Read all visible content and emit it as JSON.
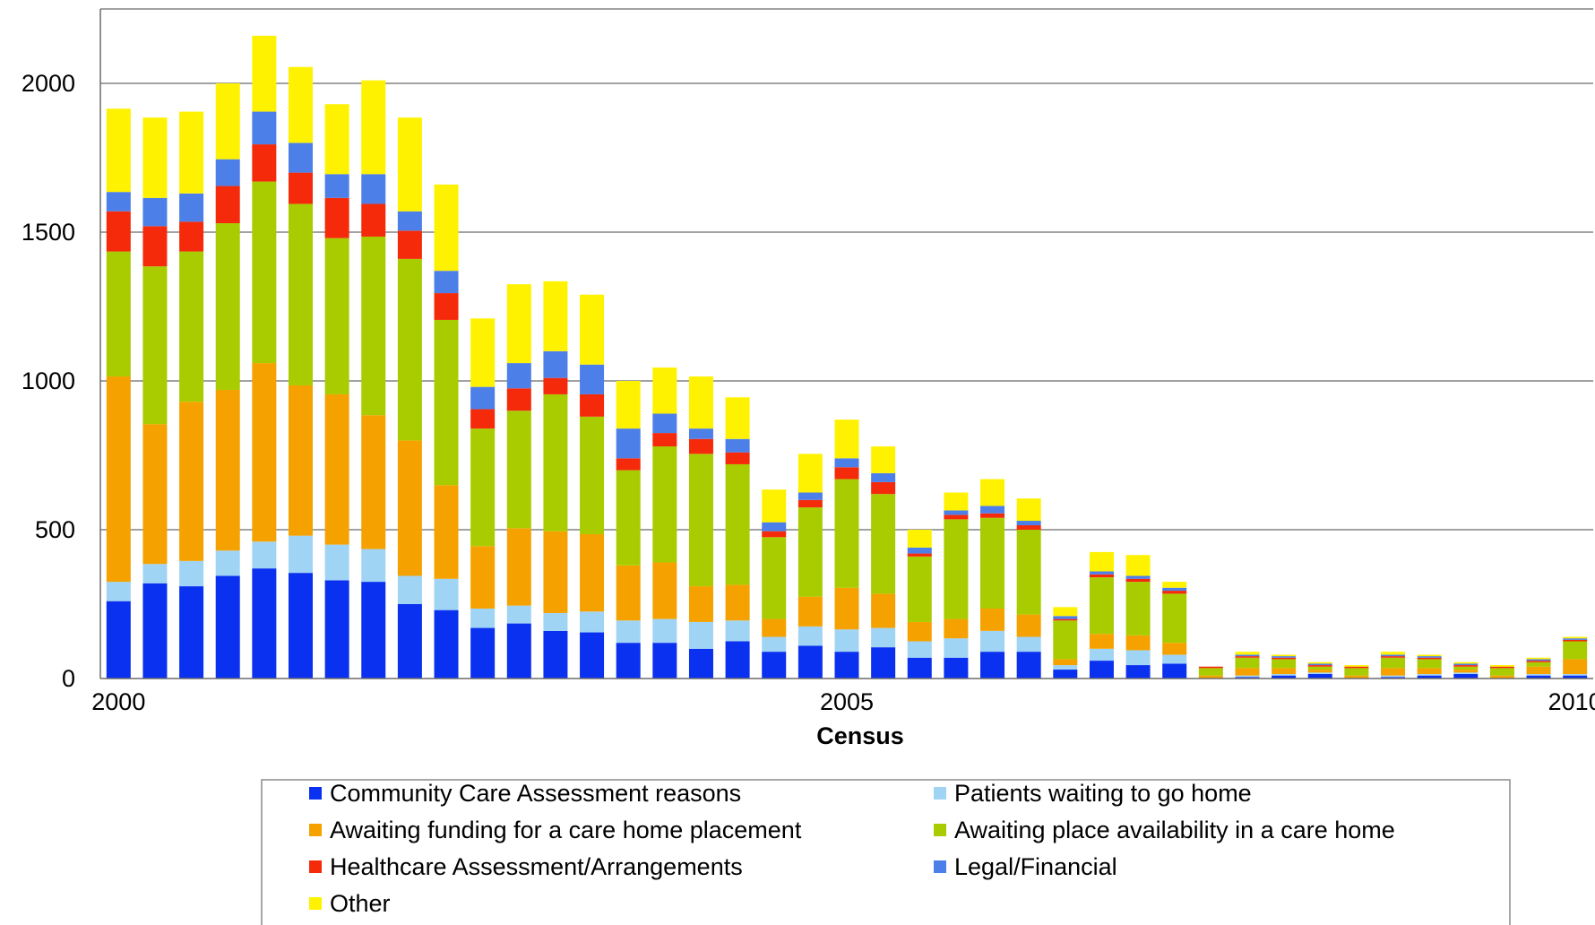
{
  "chart_data": {
    "type": "bar",
    "stacked": true,
    "title": "",
    "xlabel": "Census",
    "ylabel": "",
    "ylim": [
      0,
      2250
    ],
    "yticks": [
      0,
      500,
      1000,
      1500,
      2000
    ],
    "xticks": [
      {
        "label": "2000",
        "at": 0
      },
      {
        "label": "2005",
        "at": 20
      },
      {
        "label": "2010",
        "at": 40
      }
    ],
    "grid": true,
    "legend_position": "bottom",
    "categories": [
      "c0",
      "c1",
      "c2",
      "c3",
      "c4",
      "c5",
      "c6",
      "c7",
      "c8",
      "c9",
      "c10",
      "c11",
      "c12",
      "c13",
      "c14",
      "c15",
      "c16",
      "c17",
      "c18",
      "c19",
      "c20",
      "c21",
      "c22",
      "c23",
      "c24",
      "c25",
      "c26",
      "c27",
      "c28",
      "c29",
      "c30",
      "c31",
      "c32",
      "c33",
      "c34",
      "c35",
      "c36",
      "c37",
      "c38",
      "c39",
      "c40"
    ],
    "series": [
      {
        "name": "Community Care Assessment reasons",
        "color": "#0a30f0",
        "values": [
          260,
          320,
          310,
          345,
          370,
          355,
          330,
          325,
          250,
          230,
          170,
          185,
          160,
          155,
          120,
          120,
          100,
          125,
          90,
          110,
          90,
          105,
          70,
          70,
          90,
          90,
          30,
          60,
          45,
          50,
          0,
          5,
          10,
          15,
          0,
          5,
          10,
          15,
          0,
          10,
          10
        ]
      },
      {
        "name": "Patients waiting to go home",
        "color": "#a0d4f5",
        "values": [
          65,
          65,
          85,
          85,
          90,
          125,
          120,
          110,
          95,
          105,
          65,
          60,
          60,
          70,
          75,
          80,
          90,
          70,
          50,
          65,
          75,
          65,
          55,
          65,
          70,
          50,
          15,
          40,
          50,
          30,
          0,
          5,
          5,
          5,
          0,
          5,
          5,
          5,
          0,
          5,
          5
        ]
      },
      {
        "name": "Awaiting funding for a care home placement",
        "color": "#f5a200",
        "values": [
          690,
          470,
          535,
          540,
          600,
          505,
          505,
          450,
          455,
          315,
          210,
          260,
          275,
          260,
          185,
          190,
          120,
          120,
          60,
          100,
          140,
          115,
          65,
          65,
          75,
          75,
          20,
          50,
          50,
          40,
          10,
          25,
          20,
          10,
          10,
          25,
          20,
          10,
          10,
          25,
          50
        ]
      },
      {
        "name": "Awaiting place availability in a care home",
        "color": "#a8cc00",
        "values": [
          420,
          530,
          505,
          560,
          610,
          610,
          525,
          600,
          610,
          555,
          395,
          395,
          460,
          395,
          320,
          390,
          445,
          405,
          275,
          300,
          365,
          335,
          220,
          335,
          305,
          285,
          130,
          190,
          180,
          165,
          25,
          35,
          30,
          10,
          25,
          35,
          30,
          10,
          25,
          15,
          60
        ]
      },
      {
        "name": "Healthcare Assessment/Arrangements",
        "color": "#f52a0a",
        "values": [
          135,
          135,
          100,
          125,
          125,
          105,
          135,
          110,
          95,
          90,
          65,
          75,
          55,
          75,
          40,
          45,
          50,
          40,
          20,
          25,
          40,
          40,
          10,
          15,
          15,
          15,
          5,
          10,
          10,
          10,
          5,
          5,
          5,
          5,
          5,
          5,
          5,
          5,
          5,
          5,
          5
        ]
      },
      {
        "name": "Legal/Financial",
        "color": "#4d7fe8",
        "values": [
          65,
          95,
          95,
          90,
          110,
          100,
          80,
          100,
          65,
          75,
          75,
          85,
          90,
          100,
          100,
          65,
          35,
          45,
          30,
          25,
          30,
          30,
          20,
          15,
          25,
          15,
          10,
          10,
          10,
          10,
          0,
          5,
          5,
          5,
          0,
          5,
          5,
          5,
          0,
          5,
          5
        ]
      },
      {
        "name": "Other",
        "color": "#fff200",
        "values": [
          280,
          270,
          275,
          255,
          255,
          255,
          235,
          315,
          315,
          290,
          230,
          265,
          235,
          235,
          160,
          155,
          175,
          140,
          110,
          130,
          130,
          90,
          60,
          60,
          90,
          75,
          30,
          65,
          70,
          20,
          0,
          10,
          5,
          5,
          5,
          10,
          5,
          5,
          5,
          5,
          5
        ]
      }
    ]
  }
}
